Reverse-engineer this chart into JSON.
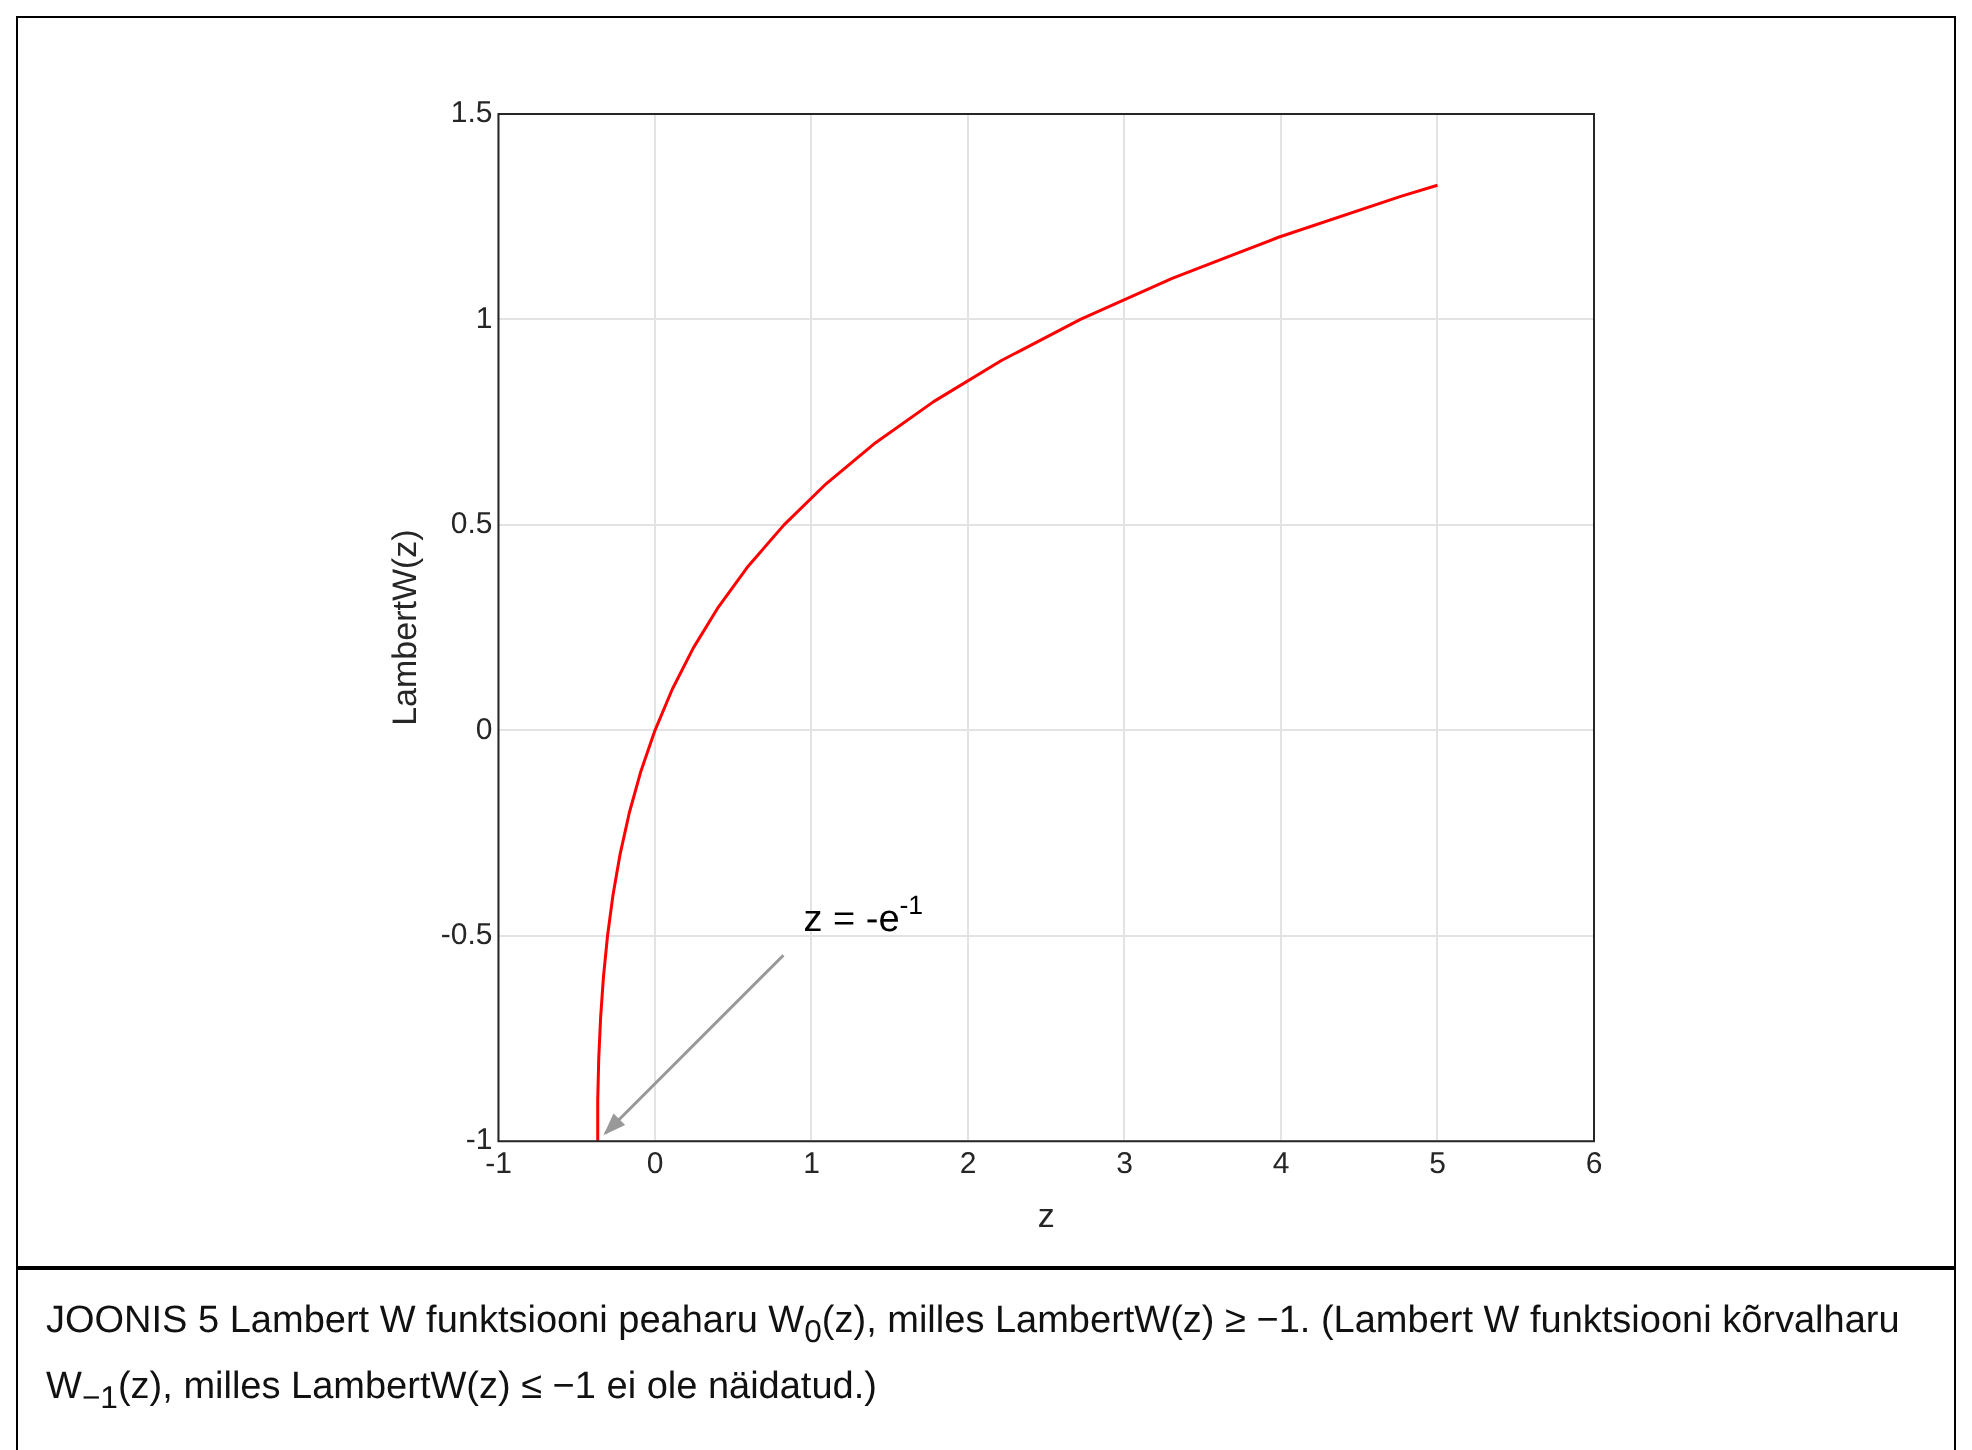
{
  "chart_data": {
    "type": "line",
    "xlabel": "z",
    "ylabel": "LambertW(z)",
    "xlim": [
      -1,
      6
    ],
    "ylim": [
      -1,
      1.5
    ],
    "xticks": [
      -1,
      0,
      1,
      2,
      3,
      4,
      5,
      6
    ],
    "yticks": [
      -1,
      -0.5,
      0,
      0.5,
      1,
      1.5
    ],
    "grid": true,
    "x": [
      -0.3679,
      -0.3659,
      -0.3595,
      -0.3476,
      -0.3293,
      -0.3033,
      -0.2681,
      -0.2222,
      -0.1637,
      -0.0905,
      0,
      0.1105,
      0.2443,
      0.405,
      0.5967,
      0.8244,
      1.0933,
      1.4096,
      1.7804,
      2.2136,
      2.7183,
      3.3046,
      3.9841,
      4.7701,
      5
    ],
    "series": [
      {
        "color": "#ff0000",
        "values": [
          -1,
          -0.9,
          -0.8,
          -0.7,
          -0.6,
          -0.5,
          -0.4,
          -0.3,
          -0.2,
          -0.1,
          0,
          0.1,
          0.2,
          0.3,
          0.4,
          0.5,
          0.6,
          0.7,
          0.8,
          0.9,
          1,
          1.1,
          1.2,
          1.3,
          1.3267
        ]
      }
    ],
    "annotations": [
      {
        "text": "z = -e$^{-1}$",
        "x": -0.3679,
        "y": -1
      },
      "JOONIS 5 Lambert W funktsiooni peaharu W$_{0}$(z), milles LambertW(z) ≥ −1. (Lambert W funktsiooni kõrvalharu W$_{−1}$(z), milles LambertW(z) ≤ −1 ei ole näidatud.)"
    ]
  }
}
